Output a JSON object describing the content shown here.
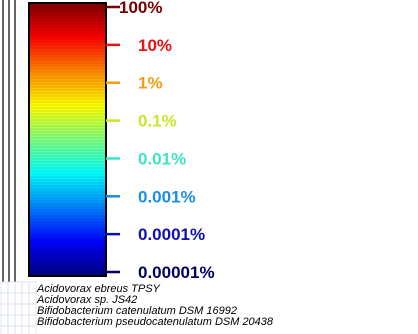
{
  "chart_data": {
    "type": "heatmap",
    "legend": {
      "scale": "log",
      "ticks": [
        {
          "label": "100%",
          "value": 100,
          "color": "#7a0000"
        },
        {
          "label": "10%",
          "value": 10,
          "color": "#ee1111"
        },
        {
          "label": "1%",
          "value": 1,
          "color": "#f39c12"
        },
        {
          "label": "0.1%",
          "value": 0.1,
          "color": "#c8e62a"
        },
        {
          "label": "0.01%",
          "value": 0.01,
          "color": "#3ee6c0"
        },
        {
          "label": "0.001%",
          "value": 0.001,
          "color": "#1a8ee6"
        },
        {
          "label": "0.0001%",
          "value": 0.0001,
          "color": "#1010b0"
        },
        {
          "label": "0.00001%",
          "value": 1e-05,
          "color": "#000060"
        }
      ],
      "colormap": "jet",
      "colormap_stops": [
        "#7f0000",
        "#ff0000",
        "#ff8800",
        "#ffff00",
        "#80ff80",
        "#00ffff",
        "#0080ff",
        "#0000ff",
        "#00007f"
      ]
    },
    "row_labels": [
      "Acidovorax ebreus TPSY",
      "Acidovorax sp. JS42",
      "Bifidobacterium catenulatum DSM 16992",
      "Bifidobacterium pseudocatenulatum DSM 20438"
    ]
  }
}
